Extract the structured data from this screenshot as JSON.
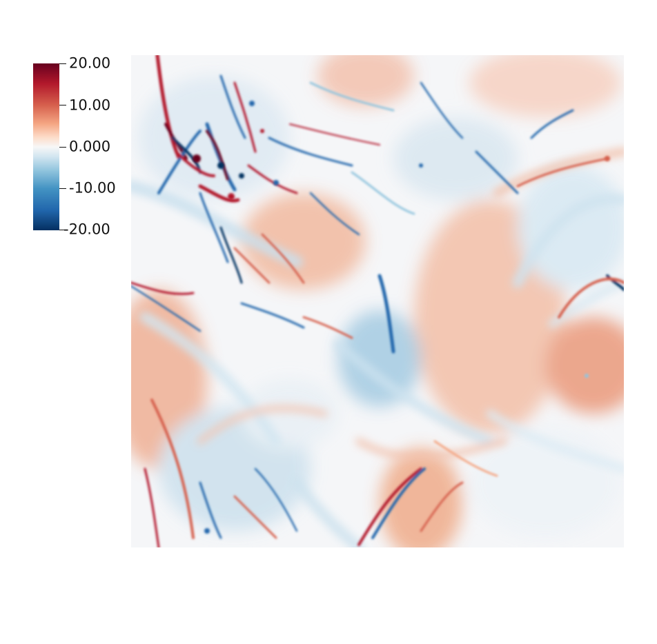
{
  "colorbar": {
    "ticks": [
      "20.00",
      "10.00",
      "0.000",
      "-10.00",
      "-20.00"
    ],
    "max": 20,
    "min": -20,
    "colors": [
      "#67001f",
      "#b2182b",
      "#d6604d",
      "#f4a582",
      "#fddbc7",
      "#f7f7f7",
      "#d1e5f0",
      "#92c5de",
      "#4393c3",
      "#2166ac",
      "#053061"
    ]
  },
  "field": {
    "colormap": "diverging red-white-blue",
    "background": "#f5f6f8"
  }
}
